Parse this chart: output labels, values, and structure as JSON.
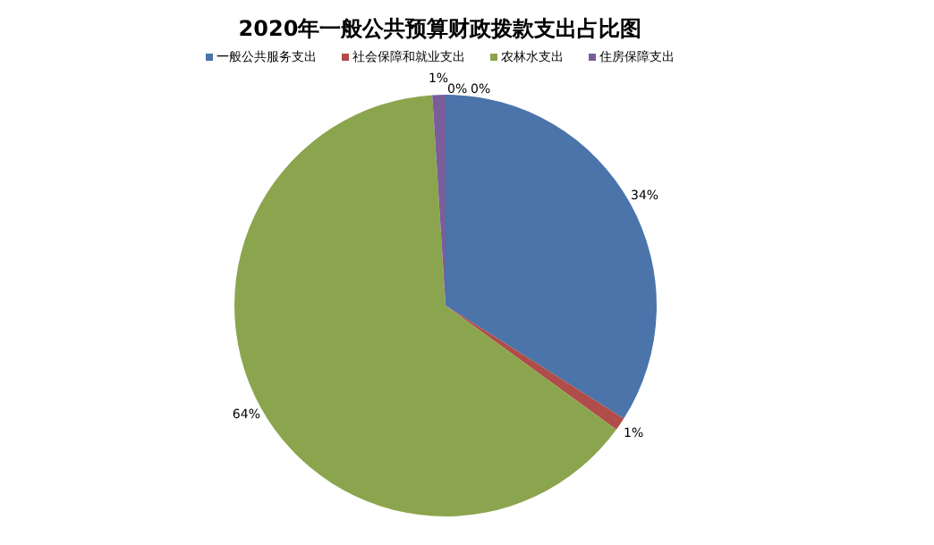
{
  "chart_data": {
    "type": "pie",
    "title": "2020年一般公共预算财政拨款支出占比图",
    "categories": [
      "一般公共服务支出",
      "社会保障和就业支出",
      "农林水支出",
      "住房保障支出"
    ],
    "values": [
      34,
      1,
      64,
      1
    ],
    "colors": [
      "#4a74aa",
      "#b04c49",
      "#8ba54e",
      "#7a5e9a"
    ],
    "value_labels": [
      "34%",
      "1%",
      "64%",
      "1%"
    ],
    "legend": "top",
    "annotations": [
      "0%",
      "0%"
    ]
  }
}
